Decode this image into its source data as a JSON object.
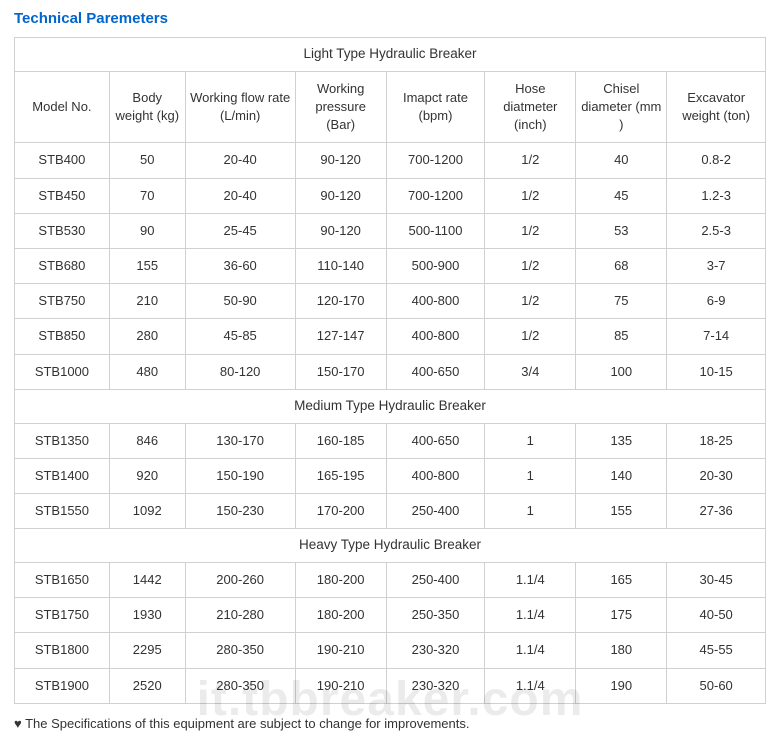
{
  "heading": "Technical Paremeters",
  "table": {
    "columns": [
      {
        "key": "model",
        "label": "Model No.",
        "class": "col-model"
      },
      {
        "key": "body",
        "label": "Body weight (kg)",
        "class": "col-body"
      },
      {
        "key": "flow",
        "label": "Working flow rate (L/min)",
        "class": "col-flow"
      },
      {
        "key": "press",
        "label": "Working pressure (Bar)",
        "class": "col-press"
      },
      {
        "key": "impact",
        "label": "Imapct rate (bpm)",
        "class": "col-impact"
      },
      {
        "key": "hose",
        "label": "Hose diatmeter (inch)",
        "class": "col-hose"
      },
      {
        "key": "chisel",
        "label": "Chisel diameter (mm )",
        "class": "col-chisel"
      },
      {
        "key": "excav",
        "label": "Excavator weight (ton)",
        "class": "col-excav"
      }
    ],
    "sections": [
      {
        "title": "Light Type Hydraulic Breaker",
        "show_headers_after": true,
        "rows": [
          [
            "STB400",
            "50",
            "20-40",
            "90-120",
            "700-1200",
            "1/2",
            "40",
            "0.8-2"
          ],
          [
            "STB450",
            "70",
            "20-40",
            "90-120",
            "700-1200",
            "1/2",
            "45",
            "1.2-3"
          ],
          [
            "STB530",
            "90",
            "25-45",
            "90-120",
            "500-1100",
            "1/2",
            "53",
            "2.5-3"
          ],
          [
            "STB680",
            "155",
            "36-60",
            "110-140",
            "500-900",
            "1/2",
            "68",
            "3-7"
          ],
          [
            "STB750",
            "210",
            "50-90",
            "120-170",
            "400-800",
            "1/2",
            "75",
            "6-9"
          ],
          [
            "STB850",
            "280",
            "45-85",
            "127-147",
            "400-800",
            "1/2",
            "85",
            "7-14"
          ],
          [
            "STB1000",
            "480",
            "80-120",
            "150-170",
            "400-650",
            "3/4",
            "100",
            "10-15"
          ]
        ]
      },
      {
        "title": "Medium Type Hydraulic Breaker",
        "show_headers_after": false,
        "rows": [
          [
            "STB1350",
            "846",
            "130-170",
            "160-185",
            "400-650",
            "1",
            "135",
            "18-25"
          ],
          [
            "STB1400",
            "920",
            "150-190",
            "165-195",
            "400-800",
            "1",
            "140",
            "20-30"
          ],
          [
            "STB1550",
            "1092",
            "150-230",
            "170-200",
            "250-400",
            "1",
            "155",
            "27-36"
          ]
        ]
      },
      {
        "title": "Heavy Type Hydraulic Breaker",
        "show_headers_after": false,
        "rows": [
          [
            "STB1650",
            "1442",
            "200-260",
            "180-200",
            "250-400",
            "1.1/4",
            "165",
            "30-45"
          ],
          [
            "STB1750",
            "1930",
            "210-280",
            "180-200",
            "250-350",
            "1.1/4",
            "175",
            "40-50"
          ],
          [
            "STB1800",
            "2295",
            "280-350",
            "190-210",
            "230-320",
            "1.1/4",
            "180",
            "45-55"
          ],
          [
            "STB1900",
            "2520",
            "280-350",
            "190-210",
            "230-320",
            "1.1/4",
            "190",
            "50-60"
          ]
        ]
      }
    ]
  },
  "footnote": "♥ The Specifications of this equipment are subject to change for improvements.",
  "watermark": "it.tbbreaker.com",
  "style": {
    "heading_color": "#0066cc",
    "border_color": "#d0d0d0",
    "text_color": "#333333",
    "background_color": "#ffffff",
    "font_family": "Arial",
    "cell_fontsize": 13,
    "heading_fontsize": 15
  }
}
